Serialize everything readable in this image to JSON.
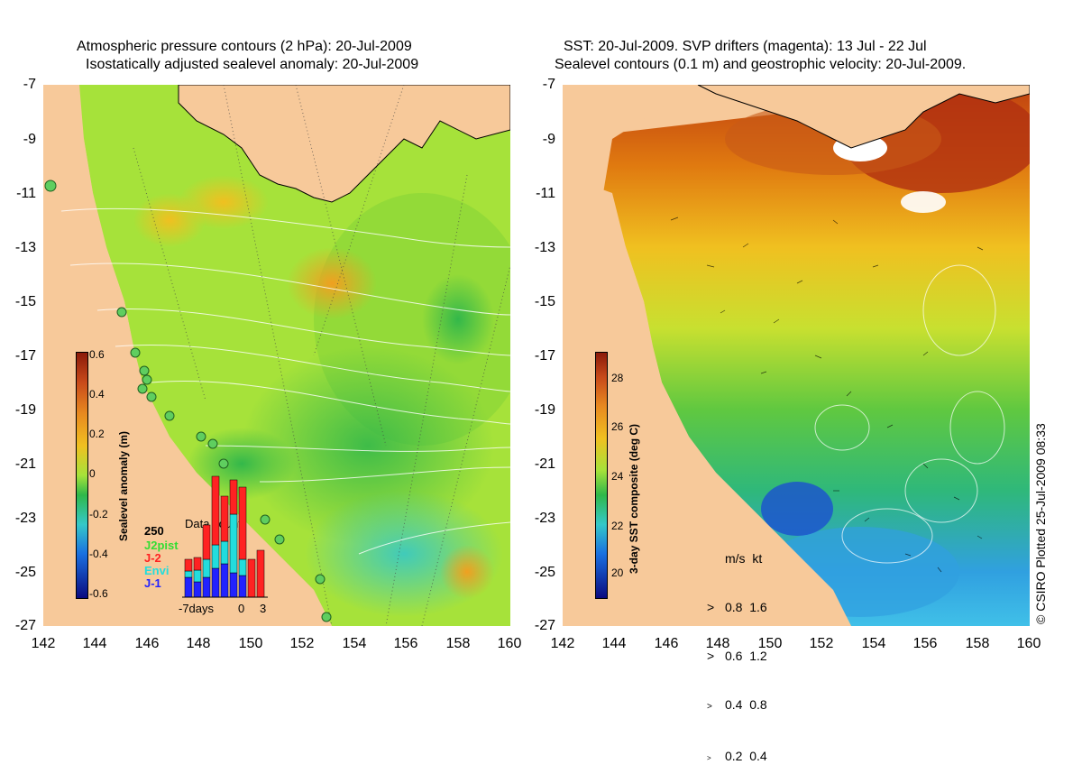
{
  "left_panel": {
    "title_line1": "Atmospheric pressure contours (2 hPa): 20-Jul-2009",
    "title_line2": "Isostatically adjusted sealevel anomaly: 20-Jul-2009",
    "colorbar": {
      "title": "Sealevel anomaly (m)",
      "ticks": [
        "0.6",
        "0.4",
        "0.2",
        "0",
        "-0.2",
        "-0.4",
        "-0.6"
      ]
    },
    "data_count": {
      "title": "Data count",
      "max_label": "250",
      "legend": [
        {
          "name": "J2pist",
          "color": "#33dd33"
        },
        {
          "name": "J-2",
          "color": "#ff2222"
        },
        {
          "name": "Envi",
          "color": "#22dddd"
        },
        {
          "name": "J-1",
          "color": "#2222ff"
        }
      ],
      "x_labels": [
        "-7days",
        "0",
        "3"
      ]
    }
  },
  "right_panel": {
    "title_line1": "SST: 20-Jul-2009. SVP drifters (magenta): 13 Jul - 22 Jul",
    "title_line2": "Sealevel contours (0.1 m) and geostrophic velocity: 20-Jul-2009.",
    "colorbar": {
      "title": "3-day SST composite (deg C)",
      "ticks": [
        "28",
        "26",
        "24",
        "22",
        "20"
      ]
    },
    "velocity_legend": {
      "header": "m/s  kt",
      "rows": [
        "0.8  1.6",
        "0.6  1.2",
        "0.4  0.8",
        "0.2  0.4"
      ]
    }
  },
  "axes": {
    "y_ticks": [
      "-7",
      "-9",
      "-11",
      "-13",
      "-15",
      "-17",
      "-19",
      "-21",
      "-23",
      "-25",
      "-27"
    ],
    "x_ticks": [
      "142",
      "144",
      "146",
      "148",
      "150",
      "152",
      "154",
      "156",
      "158",
      "160"
    ]
  },
  "credit": "© CSIRO Plotted 25-Jul-2009 08:33",
  "colors": {
    "land": "#f7c99a",
    "anomaly_base": "#a6e23a",
    "sst_warm": "#e07a10",
    "sst_cool": "#2fb87a"
  }
}
